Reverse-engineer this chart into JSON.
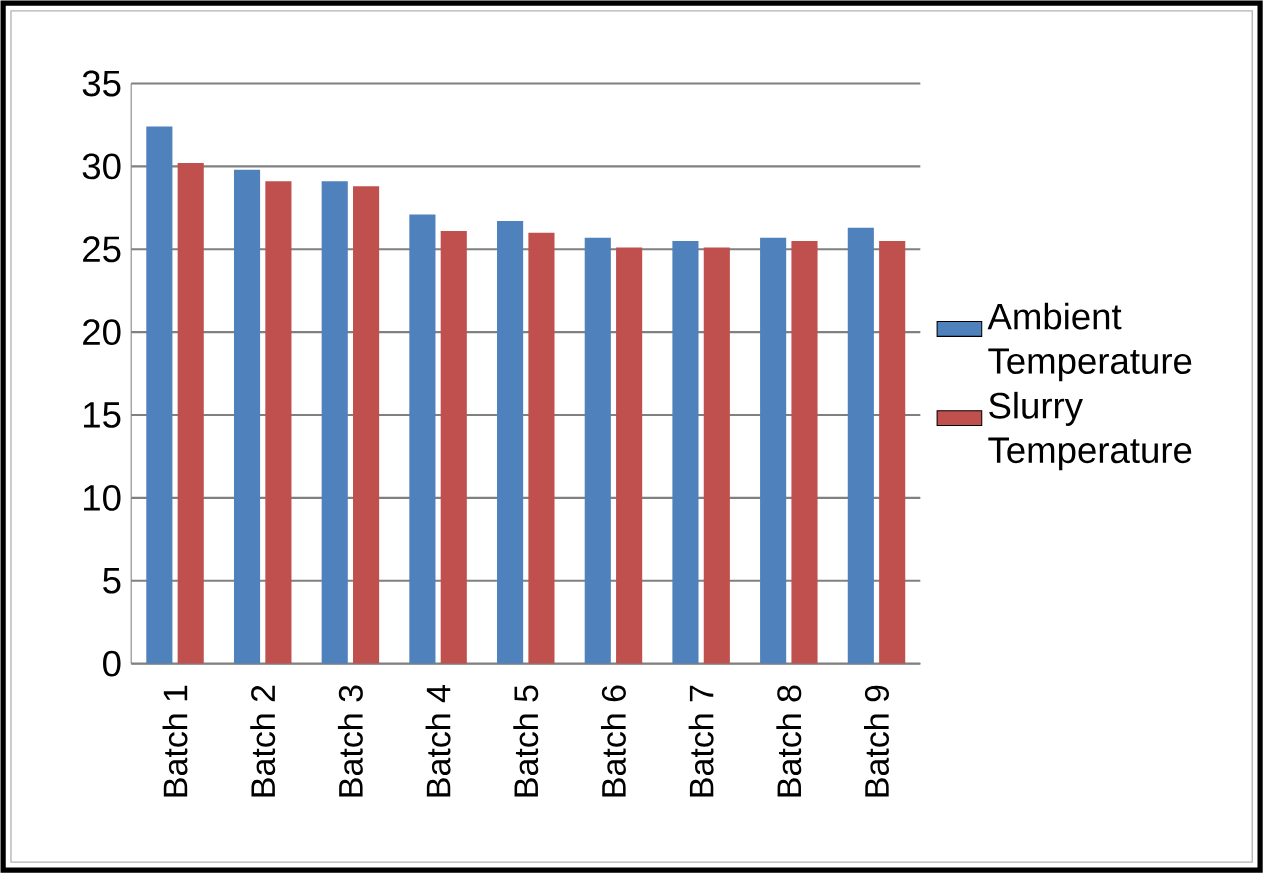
{
  "chart_data": {
    "type": "bar",
    "categories": [
      "Batch 1",
      "Batch 2",
      "Batch 3",
      "Batch 4",
      "Batch 5",
      "Batch 6",
      "Batch 7",
      "Batch 8",
      "Batch 9"
    ],
    "series": [
      {
        "name": "Ambient Temperature",
        "color": "#4f81bd",
        "values": [
          32.4,
          29.8,
          29.1,
          27.1,
          26.7,
          25.7,
          25.5,
          25.7,
          26.3
        ]
      },
      {
        "name": "Slurry Temperature",
        "color": "#c0504d",
        "values": [
          30.2,
          29.1,
          28.8,
          26.1,
          26.0,
          25.1,
          25.1,
          25.5,
          25.5
        ]
      }
    ],
    "ylim": [
      0,
      35
    ],
    "yticks": [
      0,
      5,
      10,
      15,
      20,
      25,
      30,
      35
    ],
    "grid": "y",
    "legend": "right"
  }
}
